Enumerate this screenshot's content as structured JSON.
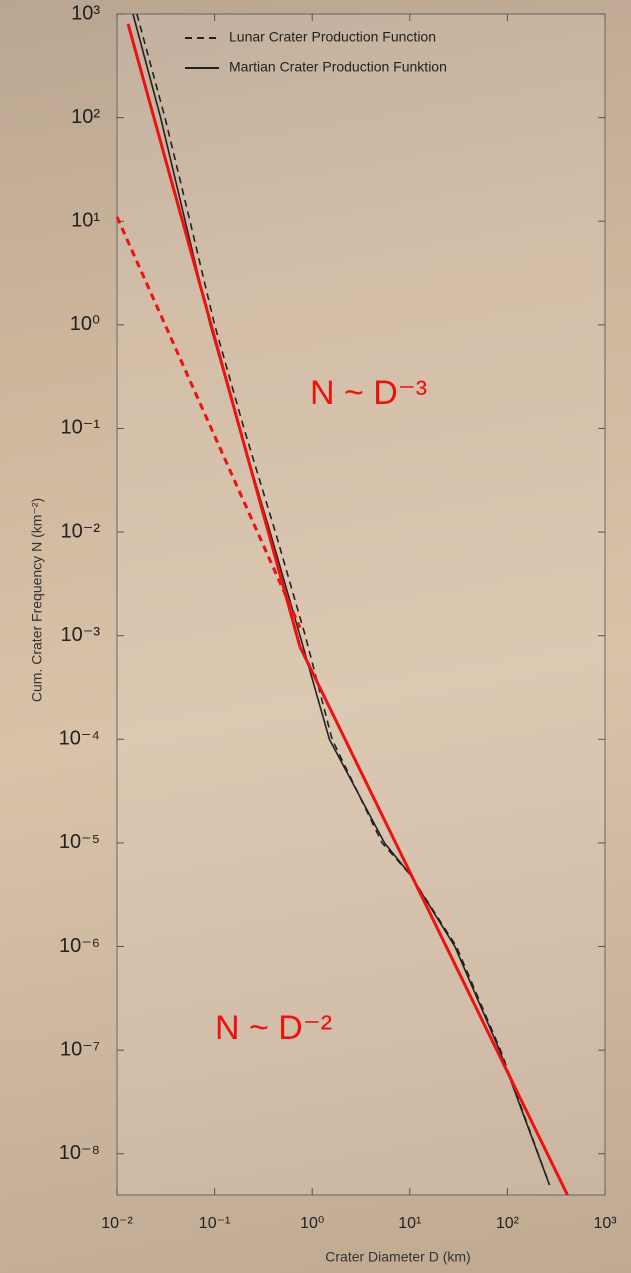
{
  "chart_data": {
    "type": "line",
    "xscale": "log",
    "yscale": "log",
    "xlabel": "Crater Diameter D (km)",
    "ylabel": "Cum. Crater Frequency N (km⁻²)",
    "xlim": [
      0.01,
      1000
    ],
    "ylim": [
      4e-09,
      1000
    ],
    "xticks": [
      {
        "value": 0.01,
        "label": "10⁻²"
      },
      {
        "value": 0.1,
        "label": "10⁻¹"
      },
      {
        "value": 1,
        "label": "10⁰"
      },
      {
        "value": 10,
        "label": "10¹"
      },
      {
        "value": 100,
        "label": "10²"
      },
      {
        "value": 1000,
        "label": "10³"
      }
    ],
    "yticks": [
      {
        "value": 1000,
        "label": "10³"
      },
      {
        "value": 100,
        "label": "10²"
      },
      {
        "value": 10,
        "label": "10¹"
      },
      {
        "value": 1,
        "label": "10⁰"
      },
      {
        "value": 0.1,
        "label": "10⁻¹"
      },
      {
        "value": 0.01,
        "label": "10⁻²"
      },
      {
        "value": 0.001,
        "label": "10⁻³"
      },
      {
        "value": 0.0001,
        "label": "10⁻⁴"
      },
      {
        "value": 1e-05,
        "label": "10⁻⁵"
      },
      {
        "value": 1e-06,
        "label": "10⁻⁶"
      },
      {
        "value": 1e-07,
        "label": "10⁻⁷"
      },
      {
        "value": 1e-08,
        "label": "10⁻⁸"
      }
    ],
    "legend": "top-right",
    "series": [
      {
        "name": "Lunar Crater Production Function",
        "color": "#222222",
        "dash": true,
        "x": [
          0.016,
          0.031,
          0.056,
          0.1,
          0.2,
          0.42,
          0.85,
          1.6,
          5.2,
          10,
          30,
          85,
          270
        ],
        "values": [
          1000,
          100,
          10,
          1,
          0.1,
          0.01,
          0.001,
          0.0001,
          1e-05,
          5e-06,
          1e-06,
          1e-07,
          5e-09
        ]
      },
      {
        "name": "Martian Crater Production Funktion",
        "color": "#222222",
        "dash": false,
        "x": [
          0.0146,
          0.028,
          0.05,
          0.09,
          0.18,
          0.37,
          0.75,
          1.5,
          5.5,
          10,
          29,
          83,
          270
        ],
        "values": [
          1000,
          100,
          10,
          1,
          0.1,
          0.01,
          0.001,
          0.0001,
          1e-05,
          5e-06,
          1e-06,
          1e-07,
          5e-09
        ]
      }
    ],
    "fits": [
      {
        "color": "#ee1111",
        "dash": false,
        "x": [
          0.013,
          0.75
        ],
        "values": [
          800,
          0.00078
        ]
      },
      {
        "color": "#ee1111",
        "dash": false,
        "x": [
          0.75,
          413
        ],
        "values": [
          0.00078,
          4e-09
        ]
      },
      {
        "color": "#ee1111",
        "dash": true,
        "x": [
          0.01,
          0.75
        ],
        "values": [
          11,
          0.0012
        ]
      }
    ],
    "annotations": [
      {
        "text": "N ~ D⁻³",
        "color": "#ee1111"
      },
      {
        "text": "N ~ D⁻²",
        "color": "#ee1111"
      }
    ]
  }
}
